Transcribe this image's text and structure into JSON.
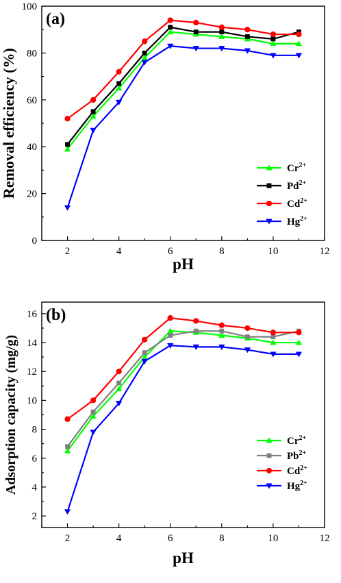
{
  "chart_data": [
    {
      "type": "line",
      "panel_label": "(a)",
      "xlabel": "pH",
      "ylabel": "Removal efficiency (%)",
      "xlim": [
        1,
        12
      ],
      "ylim": [
        0,
        100
      ],
      "xticks": [
        2,
        4,
        6,
        8,
        10,
        12
      ],
      "yticks": [
        0,
        20,
        40,
        60,
        80,
        100
      ],
      "legend_position": "bottom-right",
      "x": [
        2,
        3,
        4,
        5,
        6,
        7,
        8,
        9,
        10,
        11
      ],
      "series": [
        {
          "name": "Cr",
          "superscript": "2+",
          "color": "#00ff00",
          "marker": "triangle-up",
          "values": [
            39,
            53,
            65,
            78,
            89,
            88,
            87,
            86,
            84,
            84
          ]
        },
        {
          "name": "Pd",
          "superscript": "2+",
          "color": "#000000",
          "marker": "square",
          "values": [
            41,
            55,
            67,
            80,
            91,
            89,
            89,
            87,
            86,
            89
          ]
        },
        {
          "name": "Cd",
          "superscript": "2+",
          "color": "#ff0000",
          "marker": "circle",
          "values": [
            52,
            60,
            72,
            85,
            94,
            93,
            91,
            90,
            88,
            88
          ]
        },
        {
          "name": "Hg",
          "superscript": "2+",
          "color": "#0000ff",
          "marker": "triangle-down",
          "values": [
            14,
            47,
            59,
            76,
            83,
            82,
            82,
            81,
            79,
            79
          ]
        }
      ]
    },
    {
      "type": "line",
      "panel_label": "(b)",
      "xlabel": "pH",
      "ylabel": "Adsorption capacity (mg/g)",
      "xlim": [
        1,
        12
      ],
      "ylim": [
        1.2,
        16.8
      ],
      "xticks": [
        2,
        4,
        6,
        8,
        10,
        12
      ],
      "yticks": [
        2,
        4,
        6,
        8,
        10,
        12,
        14,
        16
      ],
      "legend_position": "bottom-right",
      "x": [
        2,
        3,
        4,
        5,
        6,
        7,
        8,
        9,
        10,
        11
      ],
      "series": [
        {
          "name": "Cr",
          "superscript": "2+",
          "color": "#00ff00",
          "marker": "triangle-up",
          "values": [
            6.5,
            8.9,
            10.8,
            13.0,
            14.8,
            14.7,
            14.5,
            14.3,
            14.0,
            14.0
          ]
        },
        {
          "name": "Pb",
          "superscript": "2+",
          "color": "#808080",
          "marker": "square",
          "values": [
            6.8,
            9.2,
            11.2,
            13.3,
            14.5,
            14.8,
            14.8,
            14.4,
            14.4,
            14.8
          ]
        },
        {
          "name": "Cd",
          "superscript": "2+",
          "color": "#ff0000",
          "marker": "circle",
          "values": [
            8.7,
            10.0,
            12.0,
            14.2,
            15.7,
            15.5,
            15.2,
            15.0,
            14.7,
            14.7
          ]
        },
        {
          "name": "Hg",
          "superscript": "2+",
          "color": "#0000ff",
          "marker": "triangle-down",
          "values": [
            2.3,
            7.8,
            9.8,
            12.7,
            13.8,
            13.7,
            13.7,
            13.5,
            13.2,
            13.2
          ]
        }
      ]
    }
  ]
}
